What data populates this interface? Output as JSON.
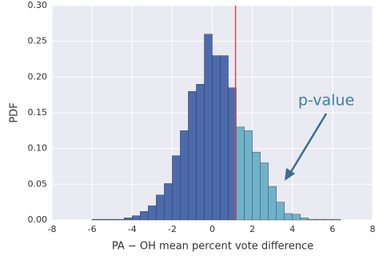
{
  "chart_data": {
    "type": "histogram",
    "xlabel": "PA − OH mean percent vote difference",
    "ylabel": "PDF",
    "annotation": "p-value",
    "bins": [
      -6.0,
      -5.6,
      -5.2,
      -4.8,
      -4.4,
      -4.0,
      -3.6,
      -3.2,
      -2.8,
      -2.4,
      -2.0,
      -1.6,
      -1.2,
      -0.8,
      -0.4,
      0.0,
      0.4,
      0.8,
      1.2,
      1.6,
      2.0,
      2.4,
      2.8,
      3.2,
      3.6,
      4.0,
      4.4,
      4.8,
      5.2,
      5.6,
      6.0,
      6.4
    ],
    "values": [
      0.001,
      0.001,
      0.001,
      0.001,
      0.003,
      0.006,
      0.012,
      0.02,
      0.035,
      0.051,
      0.09,
      0.125,
      0.18,
      0.19,
      0.26,
      0.23,
      0.23,
      0.185,
      0.13,
      0.125,
      0.095,
      0.08,
      0.047,
      0.025,
      0.009,
      0.008,
      0.003,
      0.001,
      0.001,
      0.001,
      0.001
    ],
    "threshold": 1.16,
    "colors": [
      "#4c6bad",
      "#70b2c9"
    ],
    "threshold_color": "#c44e52",
    "xlim": [
      -8,
      8
    ],
    "xticks": [
      -8,
      -6,
      -4,
      -2,
      0,
      2,
      4,
      6,
      8
    ],
    "ylim": [
      0,
      0.3
    ],
    "yticks": [
      {
        "value": 0,
        "label": "0.00"
      },
      {
        "value": 0.05,
        "label": "0.05"
      },
      {
        "value": 0.1,
        "label": "0.10"
      },
      {
        "value": 0.15,
        "label": "0.15"
      },
      {
        "value": 0.2,
        "label": "0.20"
      },
      {
        "value": 0.25,
        "label": "0.25"
      },
      {
        "value": 0.3,
        "label": "0.30"
      }
    ],
    "grid": true
  }
}
